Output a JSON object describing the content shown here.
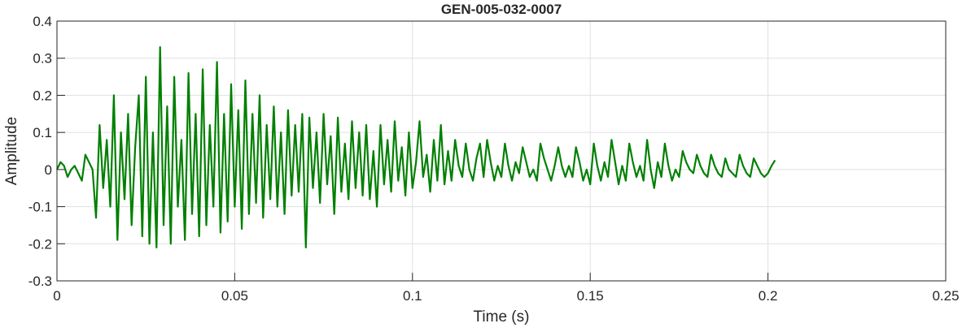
{
  "chart_data": {
    "type": "line",
    "title": "GEN-005-032-0007",
    "xlabel": "Time (s)",
    "ylabel": "Amplitude",
    "xlim": [
      0,
      0.25
    ],
    "ylim": [
      -0.3,
      0.4
    ],
    "xticks": [
      "0",
      "0.05",
      "0.1",
      "0.15",
      "0.2",
      "0.25"
    ],
    "yticks": [
      "-0.3",
      "-0.2",
      "-0.1",
      "0",
      "0.1",
      "0.2",
      "0.3",
      "0.4"
    ],
    "grid": true,
    "line_color": "#008000",
    "series": [
      {
        "x_start": 0,
        "x_step": 0.001,
        "values": [
          0,
          0.02,
          0.01,
          -0.02,
          0.0,
          0.01,
          -0.01,
          -0.03,
          0.04,
          0.02,
          0.0,
          -0.13,
          0.12,
          -0.05,
          0.08,
          -0.1,
          0.2,
          -0.19,
          0.1,
          -0.08,
          0.15,
          -0.15,
          0.06,
          0.2,
          -0.18,
          0.25,
          -0.2,
          0.1,
          -0.21,
          0.33,
          -0.15,
          0.17,
          -0.2,
          0.25,
          -0.1,
          0.08,
          -0.19,
          0.26,
          -0.12,
          0.15,
          -0.18,
          0.27,
          -0.15,
          0.12,
          -0.1,
          0.29,
          -0.17,
          0.15,
          -0.14,
          0.23,
          -0.1,
          0.16,
          -0.16,
          0.24,
          -0.12,
          0.15,
          -0.09,
          0.2,
          -0.13,
          0.12,
          -0.08,
          0.17,
          -0.1,
          0.1,
          -0.12,
          0.16,
          -0.07,
          0.12,
          -0.06,
          0.15,
          -0.21,
          0.14,
          -0.05,
          0.1,
          -0.09,
          0.15,
          -0.04,
          0.09,
          -0.12,
          0.14,
          -0.06,
          0.07,
          -0.08,
          0.13,
          -0.05,
          0.1,
          -0.07,
          0.12,
          -0.08,
          0.05,
          -0.1,
          0.12,
          -0.04,
          0.08,
          -0.06,
          0.13,
          -0.03,
          0.06,
          -0.07,
          0.1,
          -0.05,
          0.02,
          0.13,
          -0.02,
          0.04,
          -0.06,
          0.08,
          -0.03,
          0.12,
          -0.04,
          0.05,
          -0.03,
          0.08,
          0.01,
          -0.02,
          0.07,
          0.0,
          -0.03,
          0.03,
          0.07,
          -0.02,
          0.08,
          0.02,
          -0.03,
          0.01,
          -0.02,
          0.07,
          0.01,
          -0.03,
          0.02,
          -0.01,
          0.06,
          0.02,
          -0.02,
          0.0,
          -0.03,
          0.07,
          0.03,
          0.0,
          -0.03,
          0.01,
          0.06,
          0.01,
          -0.02,
          0.01,
          -0.02,
          0.06,
          0.02,
          -0.03,
          0.0,
          -0.04,
          0.07,
          0.01,
          -0.03,
          0.02,
          -0.02,
          0.08,
          0.02,
          -0.04,
          0.01,
          -0.03,
          0.07,
          0.02,
          -0.02,
          0.01,
          -0.03,
          0.08,
          0.0,
          -0.05,
          0.02,
          -0.02,
          0.07,
          0.01,
          -0.03,
          0.0,
          -0.02,
          0.05,
          0.02,
          0.0,
          -0.01,
          0.04,
          0.01,
          -0.01,
          -0.02,
          0.04,
          0.01,
          -0.01,
          -0.02,
          0.03,
          0.0,
          -0.01,
          -0.02,
          0.04,
          0.01,
          -0.01,
          -0.02,
          0.03,
          0.01,
          -0.01,
          -0.02,
          -0.01,
          0.01,
          0.025
        ]
      }
    ]
  }
}
